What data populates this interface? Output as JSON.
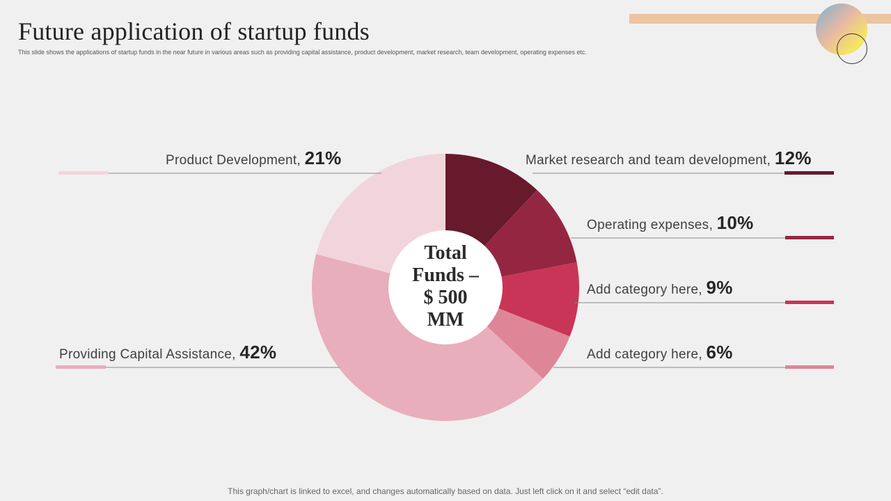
{
  "slide": {
    "title": "Future application of startup funds",
    "subtitle": "This slide shows the applications of startup funds in the near future in various areas such as providing capital assistance, product development, market research, team development, operating expenses etc.",
    "footer": "This graph/chart is linked to excel, and changes automatically based on data. Just left click on it and select “edit data”."
  },
  "chart_data": {
    "type": "pie",
    "variant": "donut",
    "center_label": "Total Funds – $ 500 MM",
    "center_lines": [
      "Total",
      "Funds –",
      "$ 500",
      "MM"
    ],
    "unit": "%",
    "categories": [
      "Market research and team development",
      "Operating expenses",
      "Add category here",
      "Add category here",
      "Providing Capital Assistance",
      "Product Development"
    ],
    "values": [
      12,
      10,
      9,
      6,
      42,
      21
    ],
    "labels": [
      {
        "text": "Market research and team development,",
        "pct": "12%"
      },
      {
        "text": "Operating expenses,",
        "pct": "10%"
      },
      {
        "text": "Add category here,",
        "pct": "9%"
      },
      {
        "text": "Add category here,",
        "pct": "6%"
      },
      {
        "text": "Providing Capital Assistance,",
        "pct": "42%"
      },
      {
        "text": "Product Development,",
        "pct": "21%"
      }
    ],
    "colors": [
      "#661a2b",
      "#952642",
      "#c93556",
      "#de8698",
      "#e8aebb",
      "#f2d5dc"
    ],
    "start_angle_deg": 0,
    "direction": "clockwise"
  }
}
